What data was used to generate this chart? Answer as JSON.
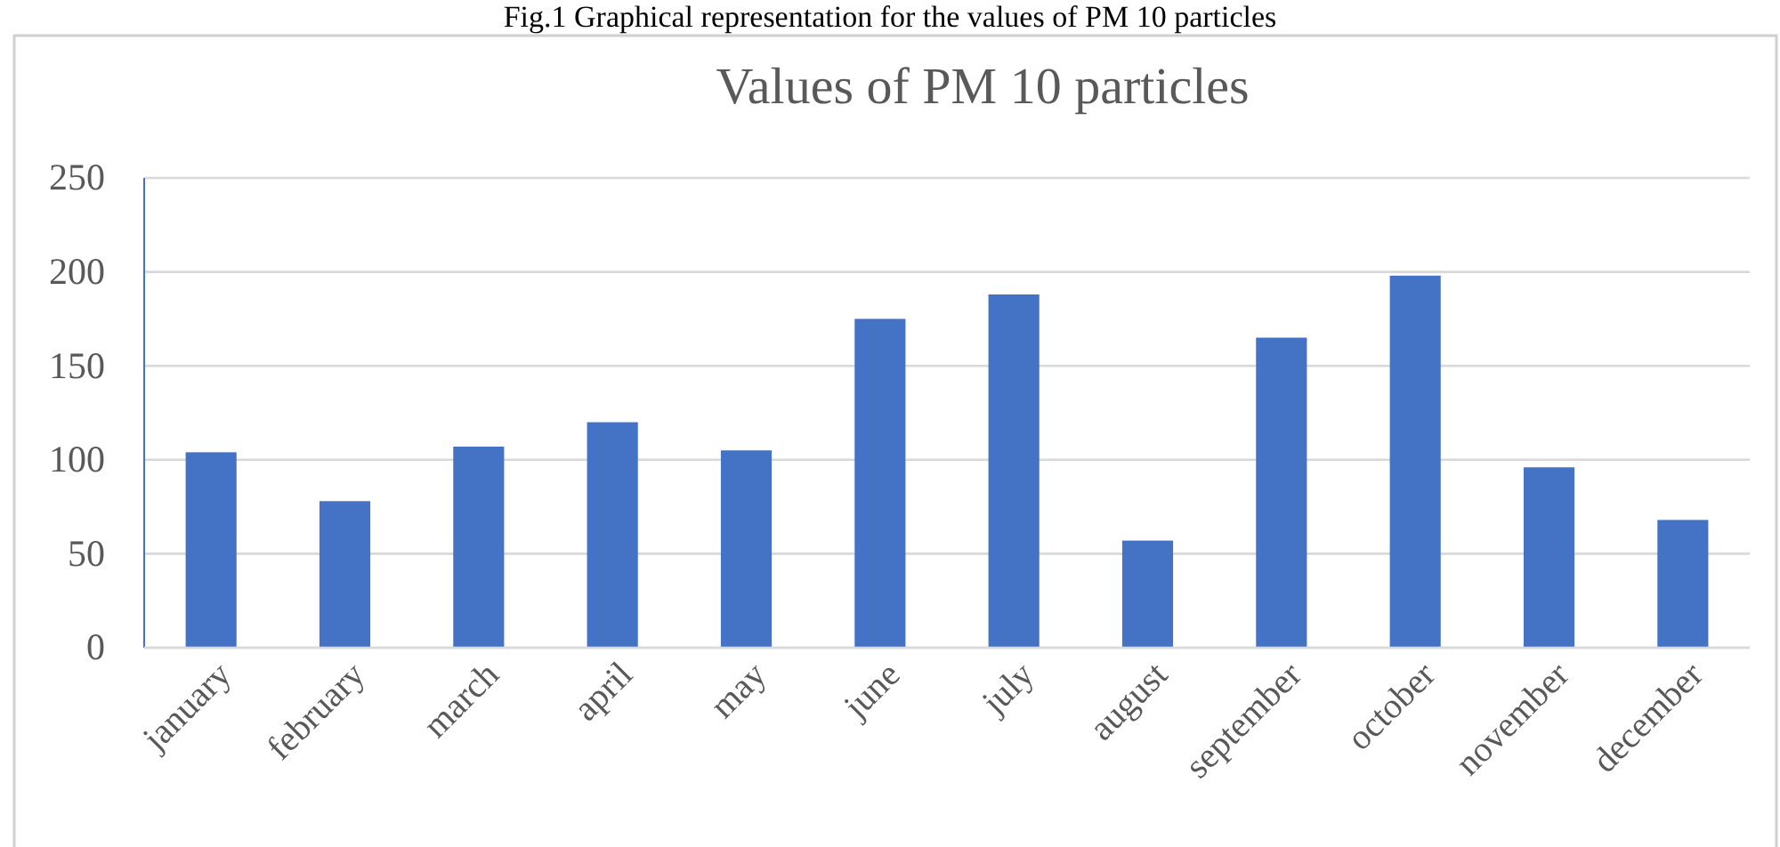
{
  "chart_data": {
    "type": "bar",
    "title": "Values of PM 10 particles",
    "annotations": [
      "Fig.1 Graphical representation for the values of PM 10 particles"
    ],
    "categories": [
      "january",
      "february",
      "march",
      "april",
      "may",
      "june",
      "july",
      "august",
      "september",
      "october",
      "november",
      "december"
    ],
    "values": [
      104,
      78,
      107,
      120,
      105,
      175,
      188,
      57,
      165,
      198,
      96,
      68
    ],
    "color": "#4472c4",
    "ylim": [
      0,
      250
    ],
    "yticks": [
      0,
      50,
      100,
      150,
      200,
      250
    ],
    "grid": "y"
  }
}
